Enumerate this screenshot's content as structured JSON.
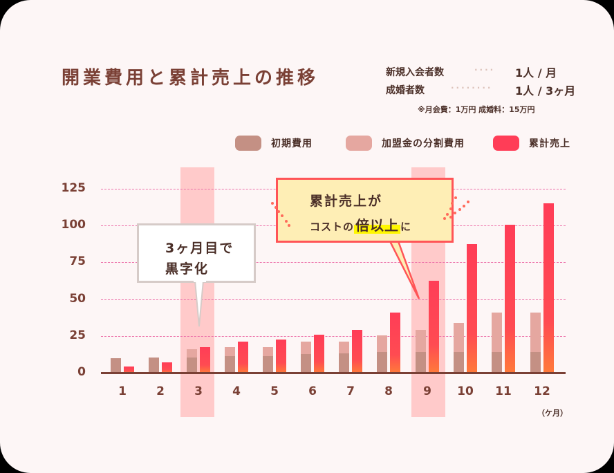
{
  "title": "開業費用と累計売上の推移",
  "info": {
    "rows": [
      {
        "label": "新規入会者数",
        "value": "1人 / 月"
      },
      {
        "label": "成婚者数",
        "value": "1人 / 3ヶ月"
      }
    ],
    "note": "※月会費：1万円  成婚料：15万円"
  },
  "legend": [
    {
      "label": "初期費用",
      "color": "#c49084"
    },
    {
      "label": "加盟金の分割費用",
      "color": "#e5a7a0"
    },
    {
      "label": "累計売上",
      "color": "#ff3d57"
    }
  ],
  "callouts": {
    "breakeven": {
      "line1": "3ヶ月目で",
      "line2": "黒字化"
    },
    "multiple": {
      "line1": "累計売上が",
      "line2_pre": "コストの",
      "line2_emph": "倍以上",
      "line2_post": "に"
    }
  },
  "chart_data": {
    "type": "bar",
    "title": "開業費用と累計売上の推移",
    "xlabel": "(ヶ月)",
    "ylabel": "",
    "ylim": [
      0,
      125
    ],
    "yticks": [
      0,
      25,
      50,
      75,
      100,
      125
    ],
    "grid": true,
    "legend_position": "top-right",
    "highlighted_categories": [
      "3",
      "9"
    ],
    "categories": [
      "1",
      "2",
      "3",
      "4",
      "5",
      "6",
      "7",
      "8",
      "9",
      "10",
      "11",
      "12"
    ],
    "series": [
      {
        "name": "初期費用",
        "stack": "cost",
        "color": "#c49084",
        "values": [
          10,
          10.5,
          10.5,
          11.5,
          11.5,
          12.5,
          13,
          14,
          14,
          14,
          14,
          14
        ]
      },
      {
        "name": "加盟金の分割費用",
        "stack": "cost",
        "color": "#e5a7a0",
        "values": [
          0,
          0,
          5.5,
          6,
          6,
          8.5,
          8,
          11.5,
          15,
          20,
          27,
          27
        ]
      },
      {
        "name": "累計売上",
        "stack": "sales",
        "color": "#ff3d57",
        "values": [
          4,
          7,
          17.5,
          21,
          22.5,
          26,
          29,
          41,
          62.5,
          87.5,
          100.5,
          115
        ]
      }
    ],
    "annotations": [
      "3ヶ月目で黒字化",
      "累計売上がコストの倍以上に"
    ]
  },
  "axis": {
    "x_unit": "（ケ月）"
  }
}
